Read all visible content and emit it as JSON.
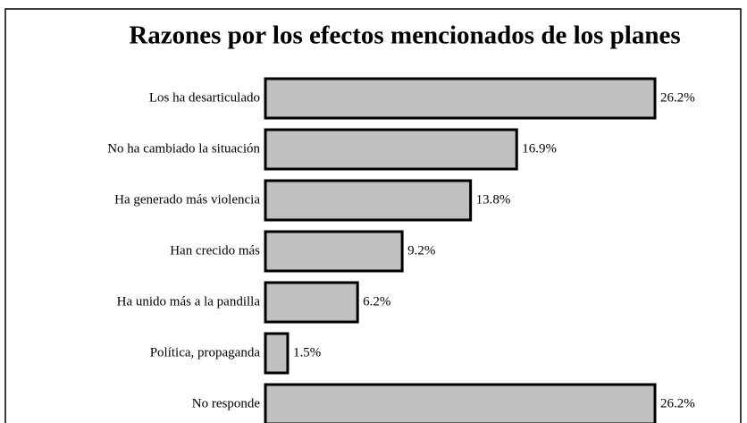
{
  "chart_data": {
    "type": "barh",
    "title": "Razones por los efectos mencionados de los planes",
    "categories": [
      "Los ha desarticulado",
      "No ha cambiado la situación",
      "Ha generado más violencia",
      "Han crecido más",
      "Ha unido más a la pandilla",
      "Política, propaganda",
      "No responde"
    ],
    "values": [
      26.2,
      16.9,
      13.8,
      9.2,
      6.2,
      1.5,
      26.2
    ],
    "value_labels": [
      "26.2%",
      "16.9%",
      "13.8%",
      "9.2%",
      "6.2%",
      "1.5%",
      "26.2%"
    ],
    "color": "#c0c0c0"
  }
}
